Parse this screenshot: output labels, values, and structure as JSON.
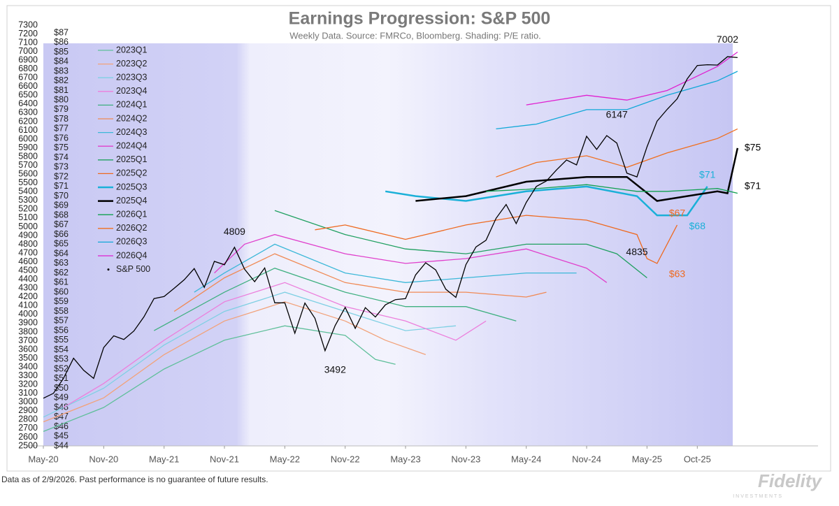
{
  "chart_data": {
    "type": "line",
    "title": "Earnings Progression: S&P 500",
    "subtitle": "Weekly Data.  Source: FMRCo, Bloomberg.  Shading: P/E ratio.",
    "footnote": "Data as of 2/9/2026. Past performance is no guarantee of future results.",
    "logo": "Fidelity",
    "logo_sub": "INVESTMENTS",
    "xlim": [
      "2020-05",
      "2026-10"
    ],
    "xticks": [
      {
        "value": "2020-05",
        "label": "May-20"
      },
      {
        "value": "2020-11",
        "label": "Nov-20"
      },
      {
        "value": "2021-05",
        "label": "May-21"
      },
      {
        "value": "2021-11",
        "label": "Nov-21"
      },
      {
        "value": "2022-05",
        "label": "May-22"
      },
      {
        "value": "2022-11",
        "label": "Nov-22"
      },
      {
        "value": "2023-05",
        "label": "May-23"
      },
      {
        "value": "2023-11",
        "label": "Nov-23"
      },
      {
        "value": "2024-05",
        "label": "May-24"
      },
      {
        "value": "2024-11",
        "label": "Nov-24"
      },
      {
        "value": "2025-05",
        "label": "May-25"
      },
      {
        "value": "2025-10",
        "label": "Oct-25"
      }
    ],
    "ylim": [
      2500,
      7300
    ],
    "yticks": [
      2500,
      2600,
      2700,
      2800,
      2900,
      3000,
      3100,
      3200,
      3300,
      3400,
      3500,
      3600,
      3700,
      3800,
      3900,
      4000,
      4100,
      4200,
      4300,
      4400,
      4500,
      4600,
      4700,
      4800,
      4900,
      5000,
      5100,
      5200,
      5300,
      5400,
      5500,
      5600,
      5700,
      5800,
      5900,
      6000,
      6100,
      6200,
      6300,
      6400,
      6500,
      6600,
      6700,
      6800,
      6900,
      7000,
      7100,
      7200,
      7300
    ],
    "y2lim": [
      44,
      87.8
    ],
    "y2ticks": [
      {
        "value": 44,
        "label": "$44"
      },
      {
        "value": 45,
        "label": "$45"
      },
      {
        "value": 46,
        "label": "$46"
      },
      {
        "value": 47,
        "label": "$47"
      },
      {
        "value": 48,
        "label": "$48"
      },
      {
        "value": 49,
        "label": "$49"
      },
      {
        "value": 50,
        "label": "$50"
      },
      {
        "value": 51,
        "label": "$51"
      },
      {
        "value": 52,
        "label": "$52"
      },
      {
        "value": 53,
        "label": "$53"
      },
      {
        "value": 54,
        "label": "$54"
      },
      {
        "value": 55,
        "label": "$55"
      },
      {
        "value": 56,
        "label": "$56"
      },
      {
        "value": 57,
        "label": "$57"
      },
      {
        "value": 58,
        "label": "$58"
      },
      {
        "value": 59,
        "label": "$59"
      },
      {
        "value": 60,
        "label": "$60"
      },
      {
        "value": 61,
        "label": "$61"
      },
      {
        "value": 62,
        "label": "$62"
      },
      {
        "value": 63,
        "label": "$63"
      },
      {
        "value": 64,
        "label": "$64"
      },
      {
        "value": 65,
        "label": "$65"
      },
      {
        "value": 66,
        "label": "$66"
      },
      {
        "value": 67,
        "label": "$67"
      },
      {
        "value": 68,
        "label": "$68"
      },
      {
        "value": 69,
        "label": "$69"
      },
      {
        "value": 70,
        "label": "$70"
      },
      {
        "value": 71,
        "label": "$71"
      },
      {
        "value": 72,
        "label": "$72"
      },
      {
        "value": 73,
        "label": "$73"
      },
      {
        "value": 74,
        "label": "$74"
      },
      {
        "value": 75,
        "label": "$75"
      },
      {
        "value": 76,
        "label": "$76"
      },
      {
        "value": 77,
        "label": "$77"
      },
      {
        "value": 78,
        "label": "$78"
      },
      {
        "value": 79,
        "label": "$79"
      },
      {
        "value": 80,
        "label": "$80"
      },
      {
        "value": 81,
        "label": "$81"
      },
      {
        "value": 82,
        "label": "$82"
      },
      {
        "value": 83,
        "label": "$83"
      },
      {
        "value": 84,
        "label": "$84"
      },
      {
        "value": 85,
        "label": "$85"
      },
      {
        "value": 86,
        "label": "$86"
      },
      {
        "value": 87,
        "label": "$87"
      }
    ],
    "series": [
      {
        "name": "2023Q1",
        "color": "#5fbf9a",
        "axis": "y2",
        "x": [
          "2020-05",
          "2020-11",
          "2021-05",
          "2021-11",
          "2022-05",
          "2022-11",
          "2023-02",
          "2023-04"
        ],
        "values": [
          45.5,
          48,
          52,
          55,
          56.5,
          55.5,
          53,
          52.5
        ]
      },
      {
        "name": "2023Q2",
        "color": "#f2a27a",
        "axis": "y2",
        "x": [
          "2020-05",
          "2020-11",
          "2021-05",
          "2021-11",
          "2022-05",
          "2022-11",
          "2023-03",
          "2023-07"
        ],
        "values": [
          46.5,
          49,
          53.5,
          57,
          59,
          57,
          55,
          53.5
        ]
      },
      {
        "name": "2023Q3",
        "color": "#7fd0e3",
        "axis": "y2",
        "x": [
          "2020-05",
          "2020-11",
          "2021-05",
          "2021-11",
          "2022-05",
          "2022-11",
          "2023-05",
          "2023-10"
        ],
        "values": [
          47,
          50,
          54.5,
          58,
          60,
          58,
          56,
          56.5
        ]
      },
      {
        "name": "2023Q4",
        "color": "#ec7fdc",
        "axis": "y2",
        "x": [
          "2020-07",
          "2020-11",
          "2021-05",
          "2021-11",
          "2022-05",
          "2022-11",
          "2023-05",
          "2023-10",
          "2024-01"
        ],
        "values": [
          48,
          50.5,
          55,
          59,
          61,
          58.5,
          57,
          55,
          57
        ]
      },
      {
        "name": "2024Q1",
        "color": "#3fb080",
        "axis": "y2",
        "x": [
          "2021-04",
          "2021-11",
          "2022-04",
          "2022-11",
          "2023-05",
          "2023-11",
          "2024-04"
        ],
        "values": [
          56,
          60,
          62.5,
          60,
          58.5,
          58.5,
          57
        ]
      },
      {
        "name": "2024Q2",
        "color": "#f08a55",
        "axis": "y2",
        "x": [
          "2021-06",
          "2021-11",
          "2022-04",
          "2022-11",
          "2023-05",
          "2023-11",
          "2024-05",
          "2024-07"
        ],
        "values": [
          58,
          61.5,
          64,
          61,
          60,
          60,
          59.5,
          60
        ]
      },
      {
        "name": "2024Q3",
        "color": "#3cb8d8",
        "axis": "y2",
        "x": [
          "2021-08",
          "2021-11",
          "2022-04",
          "2022-11",
          "2023-05",
          "2023-11",
          "2024-05",
          "2024-10"
        ],
        "values": [
          60,
          62,
          65,
          62,
          61,
          61.5,
          62,
          62
        ]
      },
      {
        "name": "2024Q4",
        "color": "#e040cc",
        "axis": "y2",
        "x": [
          "2021-10",
          "2022-01",
          "2022-04",
          "2022-11",
          "2023-05",
          "2023-11",
          "2024-05",
          "2024-11",
          "2025-01"
        ],
        "values": [
          62,
          65,
          66,
          64,
          63,
          63.5,
          64.5,
          62.5,
          61
        ]
      },
      {
        "name": "2025Q1",
        "color": "#20a060",
        "axis": "y2",
        "x": [
          "2022-04",
          "2022-11",
          "2023-05",
          "2023-11",
          "2024-05",
          "2024-11",
          "2025-02",
          "2025-05"
        ],
        "values": [
          68.5,
          66,
          64.5,
          64,
          65,
          65,
          64,
          61.5
        ]
      },
      {
        "name": "2025Q2",
        "color": "#ee6a20",
        "axis": "y2",
        "x": [
          "2022-08",
          "2022-11",
          "2023-05",
          "2023-11",
          "2024-05",
          "2024-11",
          "2025-04",
          "2025-05",
          "2025-06",
          "2025-08"
        ],
        "values": [
          66.5,
          67,
          65.5,
          67,
          68,
          67.5,
          66,
          63.5,
          63,
          67
        ]
      },
      {
        "name": "2025Q3",
        "color": "#1ab0d8",
        "axis": "y2",
        "line_width": 2.5,
        "x": [
          "2023-03",
          "2023-06",
          "2023-11",
          "2024-05",
          "2024-11",
          "2025-04",
          "2025-06",
          "2025-09",
          "2025-11"
        ],
        "values": [
          70.5,
          70,
          69.5,
          70.5,
          71,
          70,
          68,
          68,
          71
        ]
      },
      {
        "name": "2025Q4",
        "color": "#000000",
        "axis": "y2",
        "line_width": 2.5,
        "x": [
          "2023-06",
          "2023-11",
          "2024-05",
          "2024-11",
          "2025-03",
          "2025-06",
          "2025-09",
          "2025-12",
          "2026-01",
          "2026-02"
        ],
        "values": [
          69.5,
          70,
          71.5,
          72,
          72,
          69.5,
          70,
          70.5,
          70.3,
          75
        ]
      },
      {
        "name": "2026Q1",
        "color": "#10a050",
        "axis": "y2",
        "x": [
          "2024-01",
          "2024-05",
          "2024-11",
          "2025-04",
          "2025-07",
          "2025-12",
          "2026-02"
        ],
        "values": [
          70.5,
          70.7,
          71.2,
          70.5,
          70.5,
          70.8,
          70.3
        ]
      },
      {
        "name": "2026Q2",
        "color": "#f07020",
        "axis": "y2",
        "x": [
          "2024-02",
          "2024-06",
          "2024-11",
          "2025-03",
          "2025-07",
          "2025-12",
          "2026-02"
        ],
        "values": [
          72,
          73.5,
          74.2,
          73,
          74.5,
          76,
          77
        ]
      },
      {
        "name": "2026Q3",
        "color": "#10a8d8",
        "axis": "y2",
        "x": [
          "2024-02",
          "2024-06",
          "2024-11",
          "2025-03",
          "2025-07",
          "2025-12",
          "2026-02"
        ],
        "values": [
          77,
          77.5,
          79,
          79,
          80.5,
          82,
          83
        ]
      },
      {
        "name": "2026Q4",
        "color": "#e020d0",
        "axis": "y2",
        "x": [
          "2024-05",
          "2024-11",
          "2025-03",
          "2025-07",
          "2025-12",
          "2026-02"
        ],
        "values": [
          79.5,
          80.5,
          80,
          81,
          83.5,
          85
        ]
      },
      {
        "name": "S&P 500",
        "color": "#000000",
        "axis": "y",
        "x": [
          "2020-05",
          "2020-06",
          "2020-07",
          "2020-08",
          "2020-09",
          "2020-10",
          "2020-11",
          "2020-12",
          "2021-01",
          "2021-02",
          "2021-03",
          "2021-04",
          "2021-05",
          "2021-06",
          "2021-07",
          "2021-08",
          "2021-09",
          "2021-10",
          "2021-11",
          "2021-12",
          "2022-01",
          "2022-02",
          "2022-03",
          "2022-04",
          "2022-05",
          "2022-06",
          "2022-07",
          "2022-08",
          "2022-09",
          "2022-10",
          "2022-11",
          "2022-12",
          "2023-01",
          "2023-02",
          "2023-03",
          "2023-04",
          "2023-05",
          "2023-06",
          "2023-07",
          "2023-08",
          "2023-09",
          "2023-10",
          "2023-11",
          "2023-12",
          "2024-01",
          "2024-02",
          "2024-03",
          "2024-04",
          "2024-05",
          "2024-06",
          "2024-07",
          "2024-08",
          "2024-09",
          "2024-10",
          "2024-11",
          "2024-12",
          "2025-01",
          "2025-02",
          "2025-03",
          "2025-04",
          "2025-05",
          "2025-06",
          "2025-07",
          "2025-08",
          "2025-09",
          "2025-10",
          "2025-11",
          "2025-12",
          "2026-01",
          "2026-02"
        ],
        "values": [
          3044,
          3100,
          3271,
          3500,
          3363,
          3270,
          3622,
          3756,
          3714,
          3811,
          3973,
          4181,
          4204,
          4298,
          4395,
          4523,
          4308,
          4605,
          4567,
          4766,
          4516,
          4374,
          4530,
          4132,
          4132,
          3785,
          4130,
          3955,
          3586,
          3872,
          4080,
          3840,
          4077,
          3970,
          4109,
          4169,
          4180,
          4450,
          4589,
          4508,
          4288,
          4194,
          4568,
          4770,
          4846,
          5096,
          5254,
          5036,
          5278,
          5460,
          5522,
          5648,
          5762,
          5705,
          6032,
          5882,
          6040,
          5955,
          5612,
          5569,
          5912,
          6205,
          6339,
          6460,
          6688,
          6840,
          6849,
          6845,
          6940,
          6930
        ]
      }
    ],
    "annotations": [
      {
        "value": 4809,
        "x": "2021-12",
        "axis": "y",
        "position": "above"
      },
      {
        "value": 3492,
        "x": "2022-10",
        "axis": "y",
        "position": "below"
      },
      {
        "value": 6147,
        "x": "2025-02",
        "axis": "y",
        "position": "above"
      },
      {
        "value": 7002,
        "x": "2026-01",
        "axis": "y",
        "position": "above"
      },
      {
        "value": 4835,
        "x": "2025-04",
        "axis": "y",
        "position": "below"
      },
      {
        "value": 75,
        "label": "$75",
        "x": "2026-02",
        "axis": "y2",
        "position": "right",
        "color": "#000000"
      },
      {
        "value": 71,
        "label": "$71",
        "x": "2025-11",
        "axis": "y2",
        "position": "above",
        "color": "#1ab0d8"
      },
      {
        "value": 71,
        "label": "$71",
        "x": "2026-02",
        "axis": "y2",
        "position": "right",
        "color": "#000000"
      },
      {
        "value": 67,
        "label": "$67",
        "x": "2025-08",
        "axis": "y2",
        "position": "above",
        "color": "#ee6a20"
      },
      {
        "value": 68,
        "label": "$68",
        "x": "2025-10",
        "axis": "y2",
        "position": "below",
        "color": "#1ab0d8"
      },
      {
        "value": 63,
        "label": "$63",
        "x": "2025-08",
        "axis": "y2",
        "position": "below",
        "color": "#ee6a20"
      }
    ]
  }
}
